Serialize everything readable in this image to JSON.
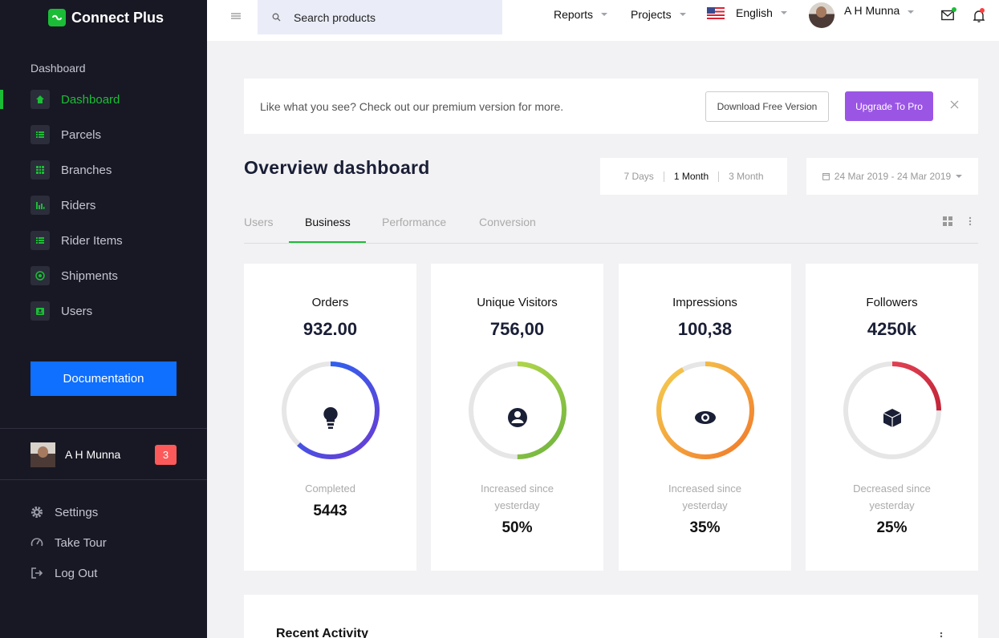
{
  "sidebar": {
    "brand": "Connect Plus",
    "section_label": "Dashboard",
    "items": [
      {
        "label": "Dashboard",
        "icon": "home-icon",
        "active": true
      },
      {
        "label": "Parcels",
        "icon": "list-icon"
      },
      {
        "label": "Branches",
        "icon": "grid-icon"
      },
      {
        "label": "Riders",
        "icon": "bar-chart-icon"
      },
      {
        "label": "Rider Items",
        "icon": "list-icon"
      },
      {
        "label": "Shipments",
        "icon": "target-icon"
      },
      {
        "label": "Users",
        "icon": "id-card-icon"
      }
    ],
    "doc_button": "Documentation",
    "user": {
      "name": "A H Munna",
      "badge": "3"
    },
    "bottom": [
      {
        "label": "Settings",
        "icon": "gear-icon"
      },
      {
        "label": "Take Tour",
        "icon": "speedometer-icon"
      },
      {
        "label": "Log Out",
        "icon": "logout-icon"
      }
    ]
  },
  "topbar": {
    "search_placeholder": "Search products",
    "reports": "Reports",
    "projects": "Projects",
    "language": "English",
    "user_name": "A H Munna"
  },
  "banner": {
    "text": "Like what you see? Check out our premium version for more.",
    "download_label": "Download Free Version",
    "upgrade_label": "Upgrade To Pro"
  },
  "main": {
    "title": "Overview dashboard",
    "ranges": [
      "7 Days",
      "1 Month",
      "3 Month"
    ],
    "selected_range": "1 Month",
    "date_range": "24 Mar 2019 - 24 Mar 2019",
    "tabs": [
      "Users",
      "Business",
      "Performance",
      "Conversion"
    ],
    "active_tab": "Business"
  },
  "cards": [
    {
      "title": "Orders",
      "value": "932.00",
      "sub": "Completed",
      "num": "5443",
      "ring_pct": 0.62,
      "ring_colors": [
        "#6c3bd4",
        "#1d6cf5"
      ],
      "icon": "lightbulb-icon"
    },
    {
      "title": "Unique Visitors",
      "value": "756,00",
      "sub": "Increased since yesterday",
      "num": "50%",
      "ring_pct": 0.5,
      "ring_colors": [
        "#6db33f",
        "#c6e14c"
      ],
      "icon": "user-circle-icon"
    },
    {
      "title": "Impressions",
      "value": "100,38",
      "sub": "Increased since yesterday",
      "num": "35%",
      "ring_pct": 0.92,
      "ring_colors": [
        "#f2792a",
        "#f5ce4e"
      ],
      "icon": "eye-icon"
    },
    {
      "title": "Followers",
      "value": "4250k",
      "sub": "Decreased since yesterday",
      "num": "25%",
      "ring_pct": 0.25,
      "ring_colors": [
        "#b4162c",
        "#ef4f5f"
      ],
      "icon": "cube-icon"
    }
  ],
  "activity": {
    "title": "Recent Activity"
  },
  "colors": {
    "accent": "#1bbd36",
    "sidebar_bg": "#181824",
    "primary": "#0f6fff",
    "purple": "#9b55e5",
    "badge": "#fc5a5a"
  }
}
